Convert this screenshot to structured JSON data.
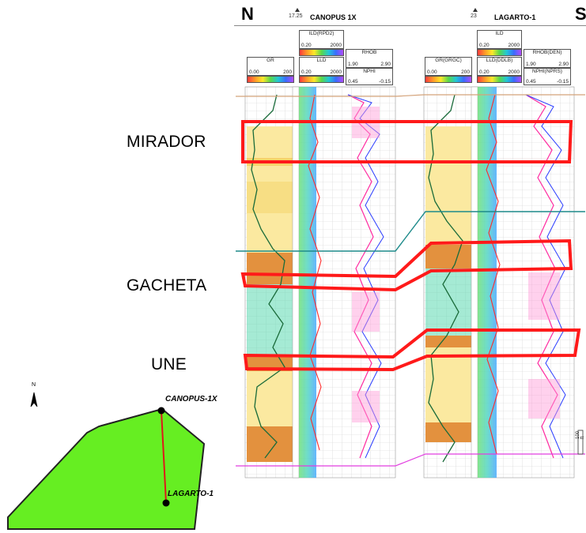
{
  "section": {
    "north_label": "N",
    "south_label": "S",
    "wells": [
      {
        "name": "CANOPUS 1X",
        "elevation": "17.25"
      },
      {
        "name": "LAGARTO-1",
        "elevation": "23"
      }
    ],
    "tracks_canopus": [
      {
        "title": "GR",
        "min": "0.00",
        "max": "200"
      },
      {
        "title": "ILD(RPD2)",
        "min": "0.20",
        "max": "2000"
      },
      {
        "title": "LLD",
        "min": "0.20",
        "max": "2000"
      },
      {
        "title": "RHOB",
        "min": "1.90",
        "max": "2.90"
      },
      {
        "title": "NPHI",
        "min": "0.45",
        "max": "-0.15"
      }
    ],
    "tracks_lagarto": [
      {
        "title": "GR(GRGC)",
        "min": "0.00",
        "max": "200"
      },
      {
        "title": "ILD",
        "min": "0.20",
        "max": "2000"
      },
      {
        "title": "LLD(DDLB)",
        "min": "0.20",
        "max": "2000"
      },
      {
        "title": "RHOB(DEN)",
        "min": "1.90",
        "max": "2.90"
      },
      {
        "title": "NPHI(NPRS)",
        "min": "0.45",
        "max": "-0.15"
      }
    ],
    "scale_label": "100 ft"
  },
  "formations": [
    {
      "name": "MIRADOR"
    },
    {
      "name": "GACHETA"
    },
    {
      "name": "UNE"
    }
  ],
  "inset_map": {
    "north_arrow_label": "N",
    "fill_color": "#66ee22",
    "wells": [
      {
        "name": "CANOPUS-1X"
      },
      {
        "name": "LAGARTO-1"
      }
    ]
  },
  "colors": {
    "highlight": "#ff1a1a",
    "sand_fill": "#fbe9a0",
    "shale_fill": "#e3913e"
  }
}
